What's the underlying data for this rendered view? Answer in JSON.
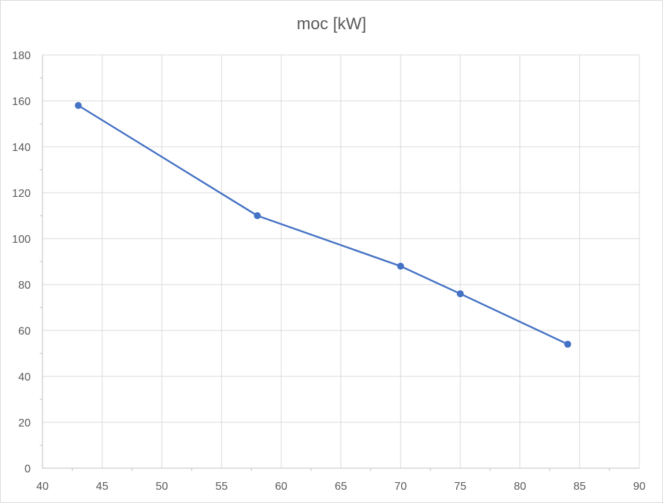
{
  "chart_data": {
    "type": "scatter",
    "title": "moc [kW]",
    "xlabel": "",
    "ylabel": "",
    "xlim": [
      40,
      90
    ],
    "ylim": [
      0,
      180
    ],
    "xticks": [
      40,
      45,
      50,
      55,
      60,
      65,
      70,
      75,
      80,
      85,
      90
    ],
    "yticks": [
      0,
      20,
      40,
      60,
      80,
      100,
      120,
      140,
      160,
      180
    ],
    "grid": true,
    "legend": "none",
    "series": [
      {
        "x": [
          43,
          58,
          70,
          75,
          84
        ],
        "y": [
          158,
          110,
          88,
          76,
          54
        ],
        "color": "#4472c4",
        "marker": "circle",
        "line": true
      }
    ]
  }
}
